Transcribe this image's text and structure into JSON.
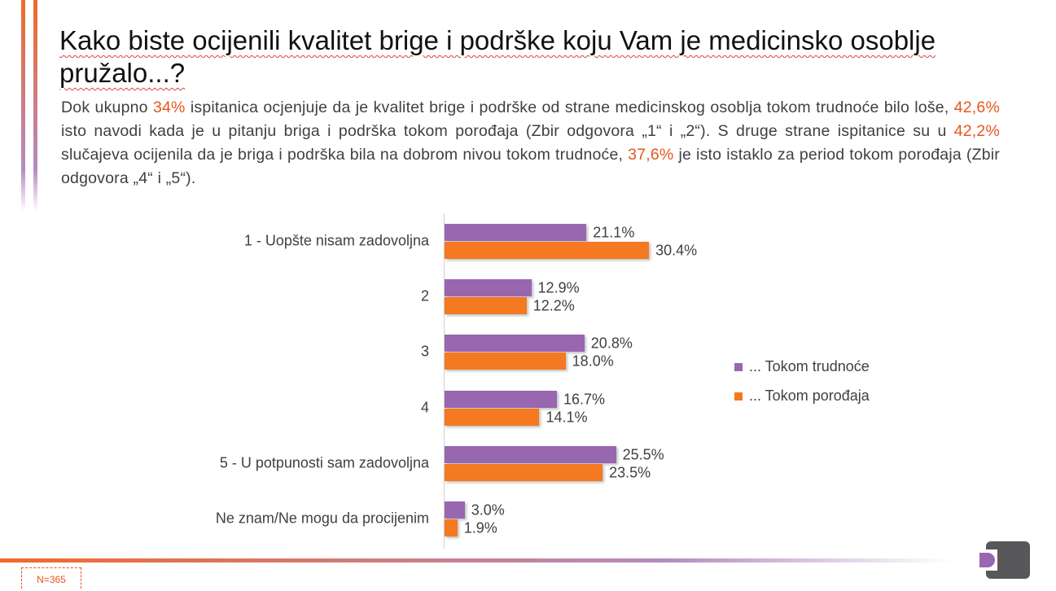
{
  "title": "Kako biste ocijenili kvalitet brige i podrške koju Vam je medicinsko osoblje pružalo...?",
  "description": [
    {
      "t": "Dok ukupno ",
      "h": false
    },
    {
      "t": "34%",
      "h": true
    },
    {
      "t": " ispitanica ocjenjuje da je kvalitet brige i podrške od strane medicinskog osoblja tokom trudnoće bilo loše, ",
      "h": false
    },
    {
      "t": "42,6%",
      "h": true
    },
    {
      "t": " isto navodi kada je u pitanju briga i podrška tokom porođaja (Zbir odgovora „1“ i „2“). S druge strane ispitanice su u ",
      "h": false
    },
    {
      "t": "42,2%",
      "h": true
    },
    {
      "t": " slučajeva ocijenila da je briga i podrška bila na dobrom nivou tokom trudnoće, ",
      "h": false
    },
    {
      "t": "37,6%",
      "h": true
    },
    {
      "t": " je isto istaklo za period tokom porođaja (Zbir odgovora „4“ i „5“).",
      "h": false
    }
  ],
  "footnote": "N=365",
  "colors": {
    "accent": "#e8561e",
    "purple": "#9966b0",
    "orange": "#f47920"
  },
  "chart_data": {
    "type": "bar",
    "orientation": "horizontal",
    "categories": [
      "1 - Uopšte nisam zadovoljna",
      "2",
      "3",
      "4",
      "5 - U potpunosti sam zadovoljna",
      "Ne znam/Ne mogu da procijenim"
    ],
    "series": [
      {
        "name": "... Tokom trudnoće",
        "color": "#9966b0",
        "values": [
          21.1,
          12.9,
          20.8,
          16.7,
          25.5,
          3.0
        ]
      },
      {
        "name": "... Tokom porođaja",
        "color": "#f47920",
        "values": [
          30.4,
          12.2,
          18.0,
          14.1,
          23.5,
          1.9
        ]
      }
    ],
    "legend": "right",
    "unit": "%"
  }
}
